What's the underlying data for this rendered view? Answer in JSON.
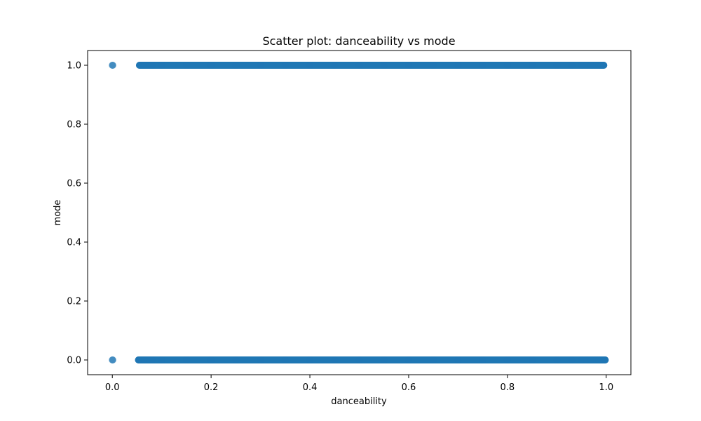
{
  "chart_data": {
    "type": "scatter",
    "title": "Scatter plot: danceability vs mode",
    "xlabel": "danceability",
    "ylabel": "mode",
    "xlim": [
      -0.05,
      1.05
    ],
    "ylim": [
      -0.05,
      1.05
    ],
    "xticks": [
      "0.0",
      "0.2",
      "0.4",
      "0.6",
      "0.8",
      "1.0"
    ],
    "yticks": [
      "0.0",
      "0.2",
      "0.4",
      "0.6",
      "0.8",
      "1.0"
    ],
    "grid": false,
    "legend": "none",
    "marker_color": "#1f77b4",
    "series": [
      {
        "y": 1,
        "x": [
          0.0,
          0.001,
          0.055,
          0.06,
          0.065,
          0.07,
          0.075,
          0.08,
          0.1,
          0.15,
          0.2,
          0.25,
          0.3,
          0.35,
          0.4,
          0.45,
          0.5,
          0.55,
          0.6,
          0.65,
          0.7,
          0.75,
          0.8,
          0.85,
          0.9,
          0.93,
          0.95,
          0.96,
          0.97,
          0.98,
          0.985,
          0.99,
          0.995
        ]
      },
      {
        "y": 0,
        "x": [
          0.0,
          0.001,
          0.053,
          0.06,
          0.065,
          0.07,
          0.075,
          0.08,
          0.1,
          0.15,
          0.2,
          0.25,
          0.3,
          0.35,
          0.4,
          0.45,
          0.5,
          0.55,
          0.6,
          0.65,
          0.7,
          0.75,
          0.8,
          0.85,
          0.9,
          0.93,
          0.95,
          0.96,
          0.97,
          0.98,
          0.985,
          0.99,
          0.998
        ]
      }
    ]
  }
}
